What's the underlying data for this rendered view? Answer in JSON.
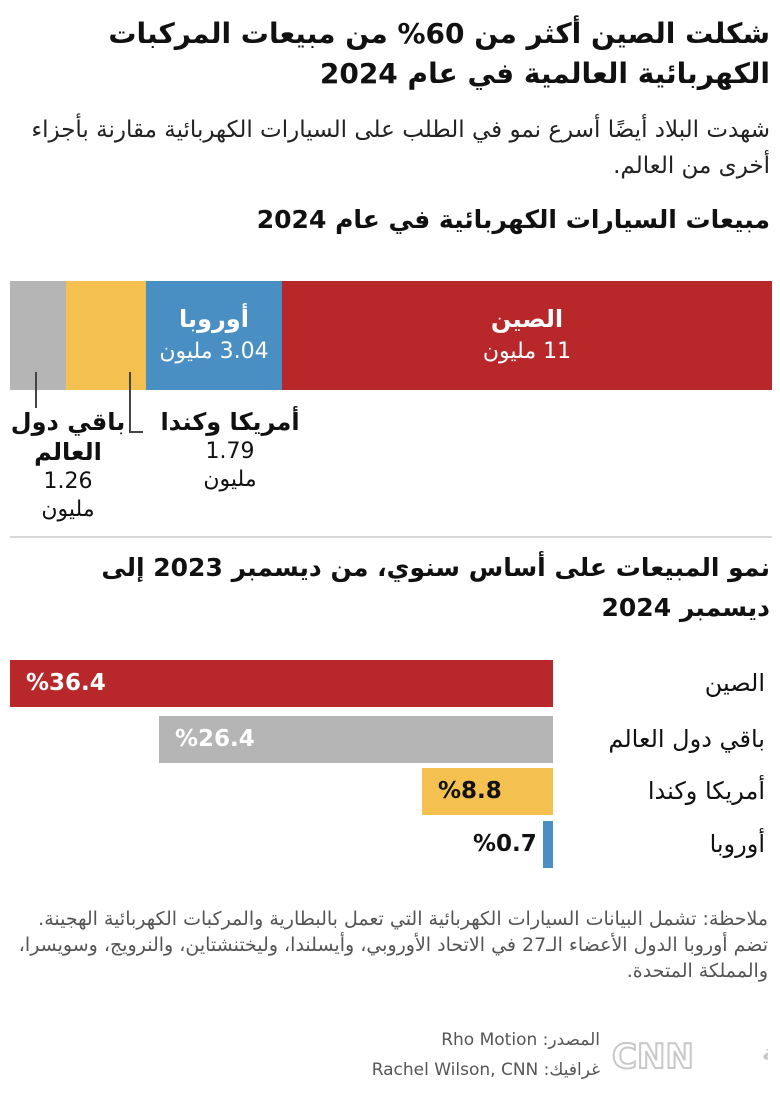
{
  "title": "شكلت الصين أكثر من 60% من مبيعات المركبات الكهربائية العالمية في عام 2024",
  "subtitle": "شهدت البلاد أيضًا أسرع نمو في الطلب على السيارات الكهربائية مقارنة بأجزاء أخرى من العالم.",
  "chart_data": [
    {
      "type": "bar",
      "stacked": true,
      "orientation": "horizontal",
      "title": "مبيعات السيارات الكهربائية في عام 2024",
      "unit": "مليون",
      "categories": [
        "الصين",
        "أوروبا",
        "أمريكا وكندا",
        "باقي دول العالم"
      ],
      "values": [
        11,
        3.04,
        1.79,
        1.26
      ],
      "value_labels": [
        "11 مليون",
        "3.04 مليون",
        "1.79",
        "1.26"
      ],
      "colors": [
        "#b8282a",
        "#4a8fc4",
        "#f4c04f",
        "#b5b5b5"
      ]
    },
    {
      "type": "bar",
      "orientation": "horizontal",
      "title": "نمو المبيعات على أساس سنوي، من ديسمبر 2023 إلى ديسمبر 2024",
      "categories": [
        "الصين",
        "باقي دول العالم",
        "أمريكا وكندا",
        "أوروبا"
      ],
      "values": [
        36.4,
        26.4,
        8.8,
        0.7
      ],
      "value_labels": [
        "%36.4",
        "%26.4",
        "%8.8",
        "%0.7"
      ],
      "colors": [
        "#b8282a",
        "#b5b5b5",
        "#f4c04f",
        "#4a8fc4"
      ]
    }
  ],
  "labels": {
    "mn": "مليون"
  },
  "note": "ملاحظة: تشمل البيانات السيارات الكهربائية التي تعمل بالبطارية والمركبات الكهربائية الهجينة. تضم أوروبا الدول الأعضاء الـ27 في الاتحاد الأوروبي، وأيسلندا، وليختنشتاين، والنرويج، وسويسرا، والمملكة المتحدة.",
  "source": "المصدر: Rho Motion",
  "credit": "غرافيك: Rachel Wilson, CNN",
  "logo": {
    "text": "بالعربية",
    "brand": "CNN"
  }
}
